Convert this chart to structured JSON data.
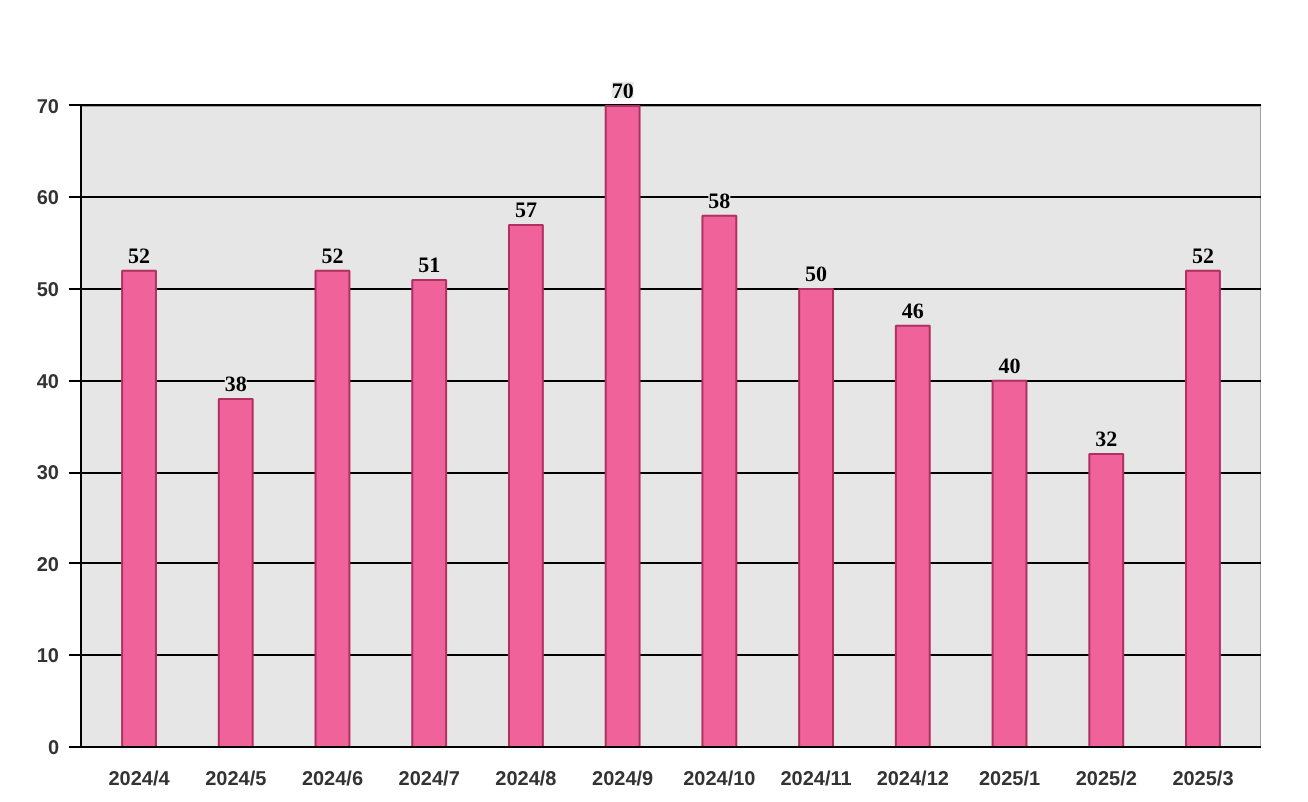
{
  "chart_data": {
    "type": "bar",
    "categories": [
      "2024/4",
      "2024/5",
      "2024/6",
      "2024/7",
      "2024/8",
      "2024/9",
      "2024/10",
      "2024/11",
      "2024/12",
      "2025/1",
      "2025/2",
      "2025/3"
    ],
    "values": [
      52,
      38,
      52,
      51,
      57,
      70,
      58,
      50,
      46,
      40,
      32,
      52
    ],
    "color": "#f0629a",
    "ylim": [
      0,
      70
    ],
    "yticks": [
      0,
      10,
      20,
      30,
      40,
      50,
      60,
      70
    ],
    "grid": "y",
    "data_labels": true
  }
}
